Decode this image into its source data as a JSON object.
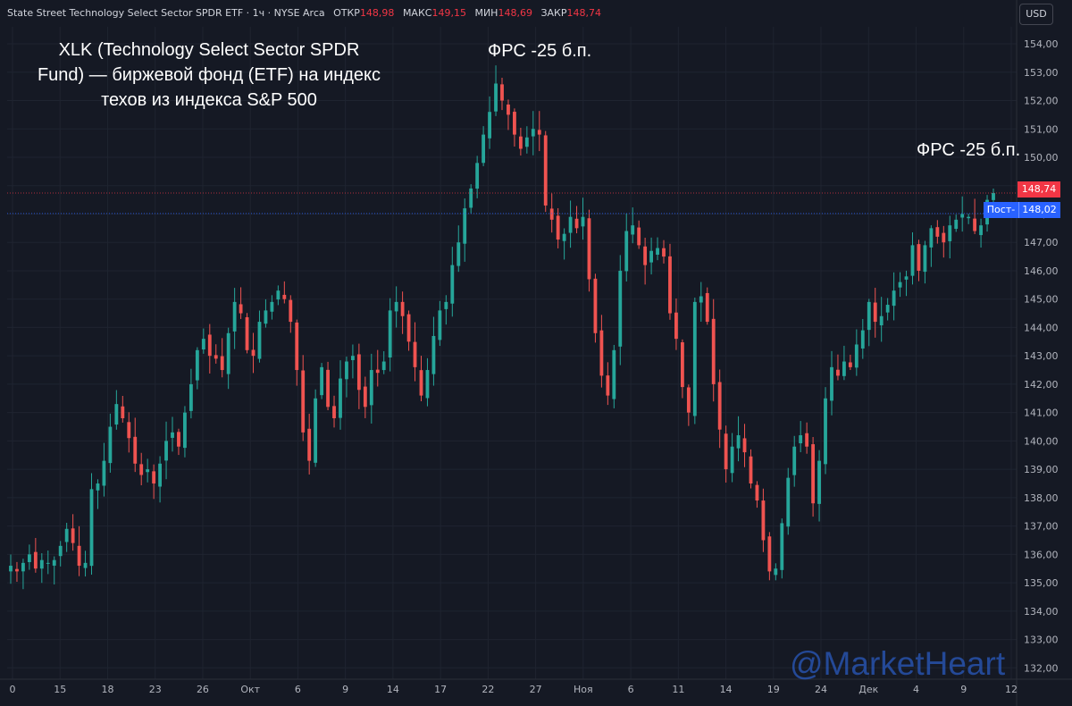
{
  "header": {
    "symbol": "State Street Technology Select Sector SPDR ETF · 1ч · NYSE Arca",
    "open_label": "ОТКР",
    "open": "148,98",
    "high_label": "МАКС",
    "high": "149,15",
    "low_label": "МИН",
    "low": "148,69",
    "close_label": "ЗАКР",
    "close": "148,74"
  },
  "currency": "USD",
  "notes": {
    "main": "XLK (Technology Select Sector SPDR Fund) — биржевой фонд (ETF) на индекс техов из индекса S&P 500",
    "fed1": "ФРС -25 б.п.",
    "fed2": "ФРС -25 б.п."
  },
  "price_tags": {
    "last": "148,74",
    "post_label": "Пост-",
    "post": "148,02"
  },
  "watermark": "@MarketHeart",
  "colors": {
    "up": "#26a69a",
    "down": "#ef5350",
    "background": "#151924",
    "grid": "#1f2430"
  },
  "chart_data": {
    "type": "candlestick",
    "ylim": [
      131.6,
      154.6
    ],
    "y_ticks": [
      "132,00",
      "133,00",
      "134,00",
      "135,00",
      "136,00",
      "137,00",
      "138,00",
      "139,00",
      "140,00",
      "141,00",
      "142,00",
      "143,00",
      "144,00",
      "145,00",
      "146,00",
      "147,00",
      "148,00",
      "149,00",
      "150,00",
      "151,00",
      "152,00",
      "153,00",
      "154,00"
    ],
    "x_ticks": [
      "0",
      "15",
      "18",
      "23",
      "26",
      "Окт",
      "6",
      "9",
      "14",
      "17",
      "22",
      "27",
      "Ноя",
      "6",
      "11",
      "14",
      "19",
      "24",
      "Дек",
      "4",
      "9",
      "12"
    ],
    "close_series": [
      135.6,
      135.4,
      135.7,
      136.0,
      135.5,
      135.8,
      135.7,
      135.8,
      136.3,
      136.9,
      136.4,
      135.6,
      135.7,
      138.3,
      138.5,
      139.3,
      140.5,
      141.3,
      140.8,
      140.1,
      139.2,
      138.8,
      139.0,
      138.5,
      139.2,
      140.0,
      140.3,
      139.8,
      141.0,
      142.0,
      143.2,
      143.6,
      143.0,
      142.9,
      142.5,
      143.8,
      144.9,
      144.5,
      143.2,
      143.0,
      144.2,
      144.6,
      144.9,
      145.3,
      145.0,
      144.2,
      142.5,
      140.3,
      139.3,
      141.5,
      142.6,
      141.2,
      140.8,
      142.2,
      142.8,
      143.0,
      141.8,
      141.2,
      142.5,
      142.4,
      142.8,
      144.6,
      144.9,
      144.4,
      143.5,
      142.6,
      141.6,
      142.5,
      143.7,
      144.6,
      144.9,
      146.2,
      147.0,
      148.2,
      148.9,
      149.8,
      150.8,
      151.6,
      152.6,
      152.0,
      151.5,
      150.8,
      150.3,
      150.7,
      151.0,
      150.8,
      148.3,
      147.8,
      147.1,
      147.3,
      147.9,
      147.5,
      147.9,
      145.7,
      143.8,
      142.3,
      141.6,
      143.2,
      146.0,
      147.4,
      147.6,
      146.9,
      146.2,
      146.7,
      146.8,
      146.5,
      144.5,
      143.6,
      141.9,
      141.0,
      144.9,
      145.1,
      144.2,
      142.0,
      140.4,
      139.0,
      139.8,
      140.2,
      139.6,
      138.5,
      137.9,
      136.5,
      135.4,
      135.5,
      137.1,
      138.7,
      139.8,
      140.2,
      139.8,
      137.8,
      139.3,
      141.5,
      142.6,
      142.3,
      142.8,
      142.6,
      143.4,
      143.9,
      144.9,
      144.2,
      144.4,
      144.8,
      145.3,
      145.6,
      145.8,
      146.9,
      146.0,
      146.9,
      147.5,
      147.2,
      147.0,
      147.6,
      147.8,
      148.0,
      147.9,
      147.4,
      147.6,
      148.5,
      148.74
    ]
  }
}
